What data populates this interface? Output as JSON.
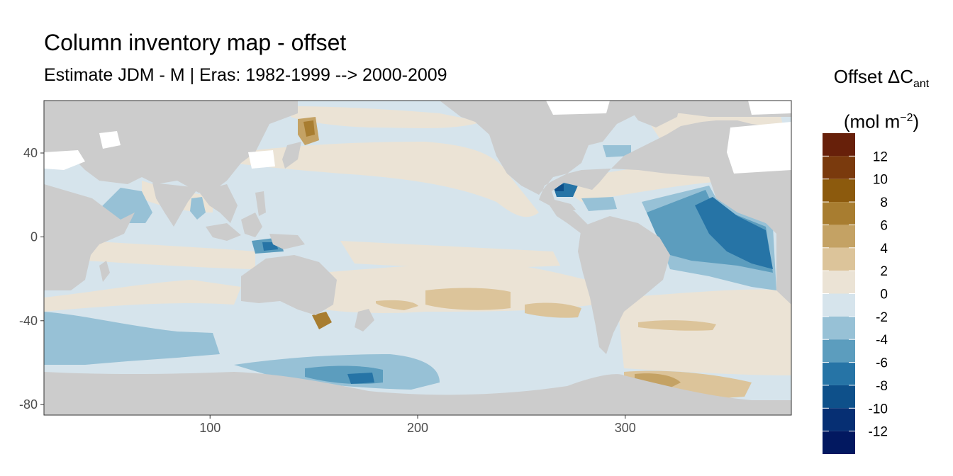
{
  "title": "Column inventory map - offset",
  "subtitle": "Estimate JDM - M | Eras: 1982-1999 --> 2000-2009",
  "legend": {
    "title_main": "Offset ΔC",
    "title_sub": "ant",
    "title_unit_pre": "(mol m",
    "title_unit_sup": "−2",
    "title_unit_post": ")"
  },
  "chart_data": {
    "type": "heatmap",
    "title": "Column inventory map - offset",
    "subtitle": "Estimate JDM - M | Eras: 1982-1999 --> 2000-2009",
    "xlim": [
      20,
      380
    ],
    "ylim": [
      -85,
      65
    ],
    "x_ticks": [
      100,
      200,
      300
    ],
    "y_ticks": [
      40,
      0,
      -40,
      -80
    ],
    "x_tick_labels": [
      "100",
      "200",
      "300"
    ],
    "y_tick_labels": [
      "40",
      "0",
      "-40",
      "-80"
    ],
    "grid": false,
    "land_color": "#cccccc",
    "legend_position": "right",
    "legend_labels": [
      "12",
      "10",
      "8",
      "6",
      "4",
      "2",
      "0",
      "-2",
      "-4",
      "-6",
      "-8",
      "-10",
      "-12"
    ],
    "color_bins": [
      {
        "range": [
          12,
          14
        ],
        "color": "#67200a"
      },
      {
        "range": [
          10,
          12
        ],
        "color": "#7a3a0d"
      },
      {
        "range": [
          8,
          10
        ],
        "color": "#8c5a0d"
      },
      {
        "range": [
          6,
          8
        ],
        "color": "#a87d30"
      },
      {
        "range": [
          4,
          6
        ],
        "color": "#c4a264"
      },
      {
        "range": [
          2,
          4
        ],
        "color": "#dcc49a"
      },
      {
        "range": [
          0,
          2
        ],
        "color": "#ebe3d5"
      },
      {
        "range": [
          -2,
          0
        ],
        "color": "#d6e4ec"
      },
      {
        "range": [
          -4,
          -2
        ],
        "color": "#97c1d6"
      },
      {
        "range": [
          -6,
          -4
        ],
        "color": "#5c9dbe"
      },
      {
        "range": [
          -8,
          -6
        ],
        "color": "#2674a6"
      },
      {
        "range": [
          -10,
          -8
        ],
        "color": "#0e508a"
      },
      {
        "range": [
          -12,
          -10
        ],
        "color": "#062f73"
      },
      {
        "range": [
          -14,
          -12
        ],
        "color": "#021860"
      }
    ]
  }
}
